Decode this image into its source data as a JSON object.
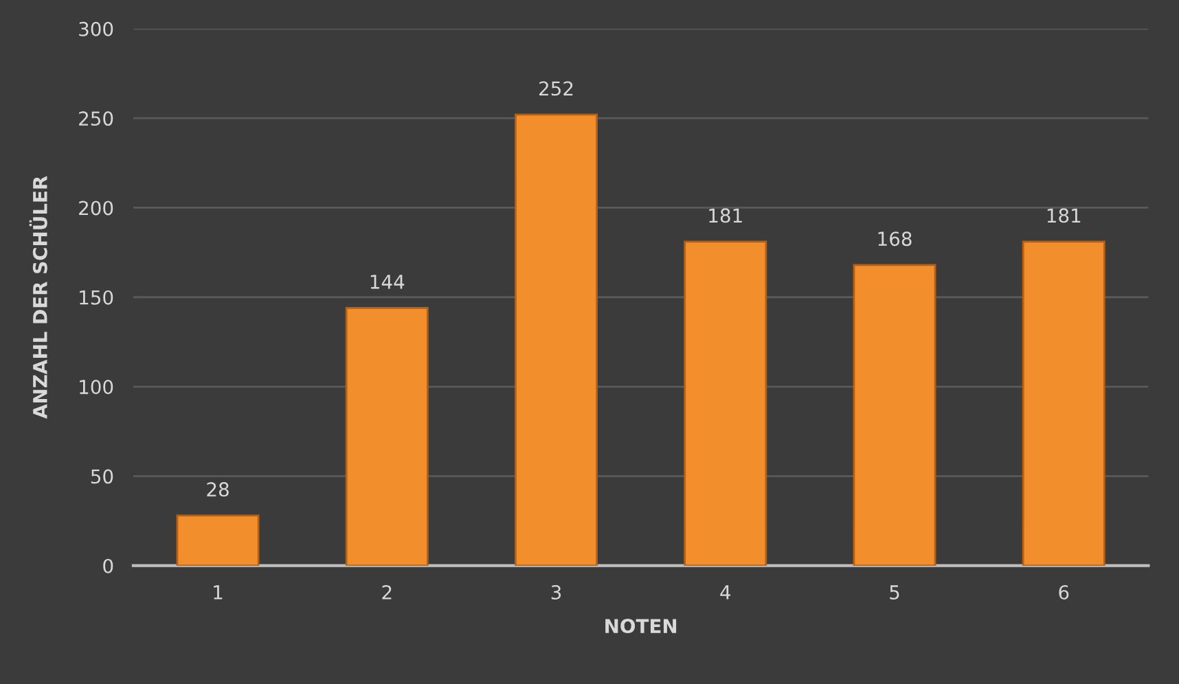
{
  "chart_data": {
    "type": "bar",
    "xlabel": "NOTEN",
    "ylabel": "ANZAHL DER SCHÜLER",
    "categories": [
      "1",
      "2",
      "3",
      "4",
      "5",
      "6"
    ],
    "values": [
      28,
      144,
      252,
      181,
      168,
      181
    ],
    "color": "#f28e2b",
    "ylim": [
      0,
      300
    ],
    "yticks": [
      0,
      50,
      100,
      150,
      200,
      250,
      300
    ],
    "grid": "y",
    "data_labels": true
  }
}
